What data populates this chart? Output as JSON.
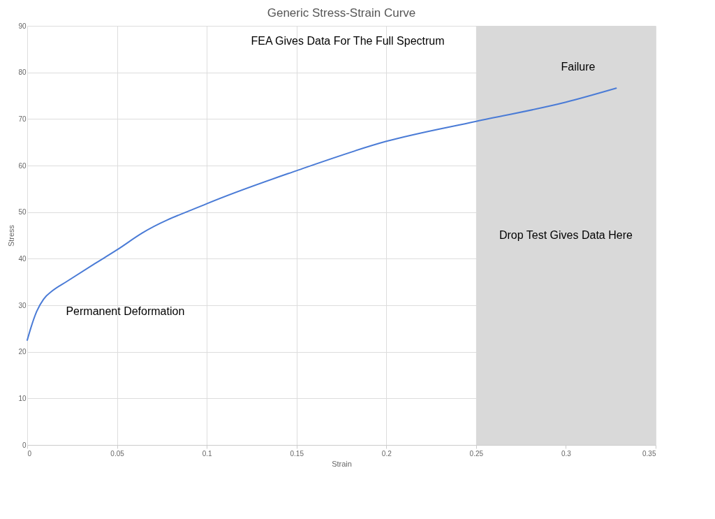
{
  "chart_data": {
    "type": "line",
    "title": "Generic Stress-Strain Curve",
    "xlabel": "Strain",
    "ylabel": "Stress",
    "series": [
      {
        "color": "#4a7bd6",
        "x": [
          0,
          0.0019,
          0.0053,
          0.0091,
          0.014,
          0.022,
          0.0375,
          0.05,
          0.064,
          0.1,
          0.15,
          0.2,
          0.25,
          0.3,
          0.328
        ],
        "values": [
          22.5,
          25,
          28.7,
          31.3,
          33.1,
          35.1,
          38.9,
          41.9,
          45.5,
          51.8,
          58.9,
          65.2,
          69.5,
          73.6,
          76.6
        ]
      }
    ],
    "xlim": [
      0,
      0.35
    ],
    "xticks": [
      0,
      0.05,
      0.1,
      0.15,
      0.2,
      0.25,
      0.3,
      0.35
    ],
    "ylim": [
      0,
      90
    ],
    "yticks": [
      0,
      10,
      20,
      30,
      40,
      50,
      60,
      70,
      80,
      90
    ],
    "grid": true,
    "marker": "none",
    "line_style": "solid",
    "bands": [
      {
        "axis": "x",
        "from": 0.25,
        "to": 0.35,
        "label": "Drop Test Gives Data Here",
        "color": "#d9d9d9"
      }
    ],
    "annotations": [
      "FEA Gives Data For The Full Spectrum",
      {
        "text": "Failure",
        "x": 0.328,
        "y": 76.6
      },
      {
        "text": "Permanent Deformation",
        "x": 0.013,
        "y": 32
      }
    ]
  }
}
